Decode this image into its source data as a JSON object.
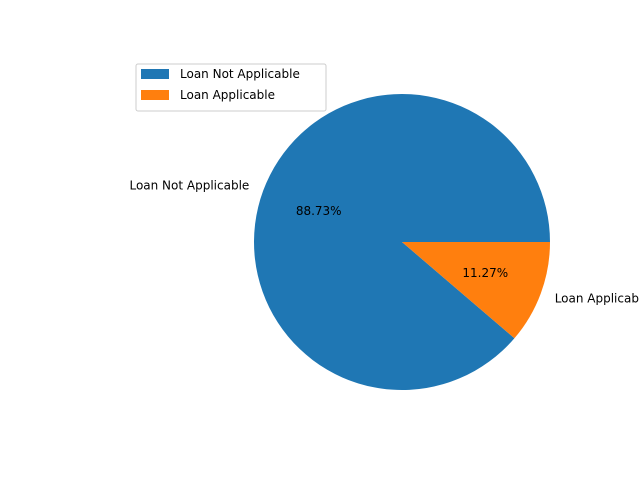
{
  "chart_data": {
    "type": "pie",
    "title": "",
    "labels": [
      "Loan Not Applicable",
      "Loan Applicable"
    ],
    "values": [
      88.73,
      11.27
    ],
    "percent_labels": [
      "88.73%",
      "11.27%"
    ],
    "colors": [
      "#1f77b4",
      "#ff7f0e"
    ],
    "start_angle_deg": 0,
    "direction": "counterclockwise",
    "legend": {
      "placement": "upper-left",
      "entries": [
        "Loan Not Applicable",
        "Loan Applicable"
      ]
    }
  }
}
